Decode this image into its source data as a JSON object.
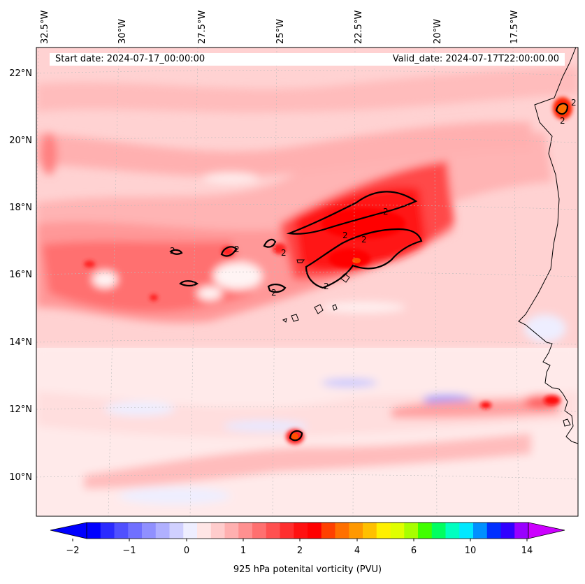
{
  "map": {
    "header": {
      "start_date": "Start date: 2024-07-17_00:00:00",
      "valid_date": "Valid_date: 2024-07-17T22:00:00.00"
    },
    "longitude_labels": [
      "32.5°W",
      "30°W",
      "27.5°W",
      "25°W",
      "22.5°W",
      "20°W",
      "17.5°W"
    ],
    "latitude_labels": [
      "22°N",
      "20°N",
      "18°N",
      "16°N",
      "14°N",
      "12°N",
      "10°N"
    ],
    "contour_label": "2",
    "colorbar": {
      "label": "925 hPa potenital vorticity (PVU)",
      "ticks": [
        "−2",
        "−1",
        "0",
        "1",
        "2",
        "4",
        "6",
        "10",
        "14"
      ],
      "colors": [
        "#0000ff",
        "#2a2aff",
        "#5050ff",
        "#7070ff",
        "#9090ff",
        "#b0b0ff",
        "#d0d0ff",
        "#eeeeff",
        "#ffe6e6",
        "#ffcccc",
        "#ffb0b0",
        "#ff9090",
        "#ff7070",
        "#ff5050",
        "#ff2e2e",
        "#ff1010",
        "#ff0000",
        "#ff4000",
        "#ff7000",
        "#ff9800",
        "#ffc000",
        "#fff000",
        "#e0ff00",
        "#a8ff00",
        "#40ff00",
        "#00ff60",
        "#00ffc0",
        "#00e8ff",
        "#0090ff",
        "#0030ff",
        "#3000ff",
        "#9900ff"
      ],
      "extend_low_color": "#0000ff",
      "extend_high_color": "#cc00ff"
    }
  }
}
